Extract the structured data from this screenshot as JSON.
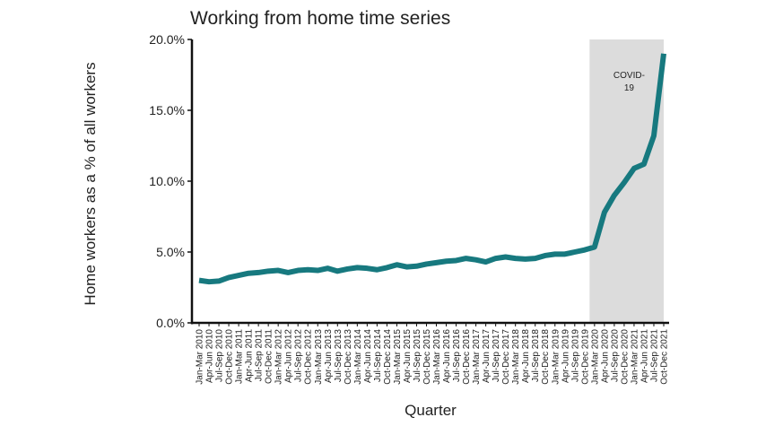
{
  "chart_data": {
    "type": "line",
    "title": "Working from home time series",
    "x_label": "Quarter",
    "y_label": "Home workers as a % of all workers",
    "categories": [
      "Jan-Mar 2010",
      "Apr-Jun 2010",
      "Jul-Sep 2010",
      "Oct-Dec 2010",
      "Jan-Mar 2011",
      "Apr-Jun 2011",
      "Jul-Sep 2011",
      "Oct-Dec 2011",
      "Jan-Mar 2012",
      "Apr-Jun 2012",
      "Jul-Sep 2012",
      "Oct-Dec 2012",
      "Jan-Mar 2013",
      "Apr-Jun 2013",
      "Jul-Sep 2013",
      "Oct-Dec 2013",
      "Jan-Mar 2014",
      "Apr-Jun 2014",
      "Jul-Sep 2014",
      "Oct-Dec 2014",
      "Jan-Mar 2015",
      "Apr-Jun 2015",
      "Jul-Sep 2015",
      "Oct-Dec 2015",
      "Jan-Mar 2016",
      "Apr-Jun 2016",
      "Jul-Sep 2016",
      "Oct-Dec 2016",
      "Jan-Mar 2017",
      "Apr-Jun 2017",
      "Jul-Sep 2017",
      "Oct-Dec 2017",
      "Jan-Mar 2018",
      "Apr-Jun 2018",
      "Jul-Sep 2018",
      "Oct-Dec 2018",
      "Jan-Mar 2019",
      "Apr-Jun 2019",
      "Jul-Sep 2019",
      "Oct-Dec 2019",
      "Jan-Mar 2020",
      "Apr-Jun 2020",
      "Jul-Sep 2020",
      "Oct-Dec 2020",
      "Jan-Mar 2021",
      "Apr-Jun 2021",
      "Jul-Sep 2021",
      "Oct-Dec 2021"
    ],
    "series": [
      {
        "name": "Home workers",
        "color": "#17797f",
        "values": [
          3.0,
          2.9,
          2.95,
          3.2,
          3.35,
          3.5,
          3.55,
          3.65,
          3.7,
          3.55,
          3.7,
          3.75,
          3.7,
          3.85,
          3.65,
          3.8,
          3.9,
          3.85,
          3.75,
          3.9,
          4.1,
          3.95,
          4.0,
          4.15,
          4.25,
          4.35,
          4.4,
          4.55,
          4.45,
          4.3,
          4.55,
          4.65,
          4.55,
          4.5,
          4.55,
          4.75,
          4.85,
          4.85,
          5.0,
          5.15,
          5.35,
          7.8,
          9.0,
          9.9,
          10.9,
          11.2,
          13.2,
          19.0
        ]
      }
    ],
    "ylim": [
      0,
      20
    ],
    "yticks": [
      {
        "value": 0,
        "label": "0.0%"
      },
      {
        "value": 5,
        "label": "5.0%"
      },
      {
        "value": 10,
        "label": "10.0%"
      },
      {
        "value": 15,
        "label": "15.0%"
      },
      {
        "value": 20,
        "label": "20.0%"
      }
    ],
    "highlight": {
      "from": 40,
      "to": 47,
      "color": "#dcdcdc",
      "label": [
        "COVID-",
        "19"
      ]
    }
  }
}
